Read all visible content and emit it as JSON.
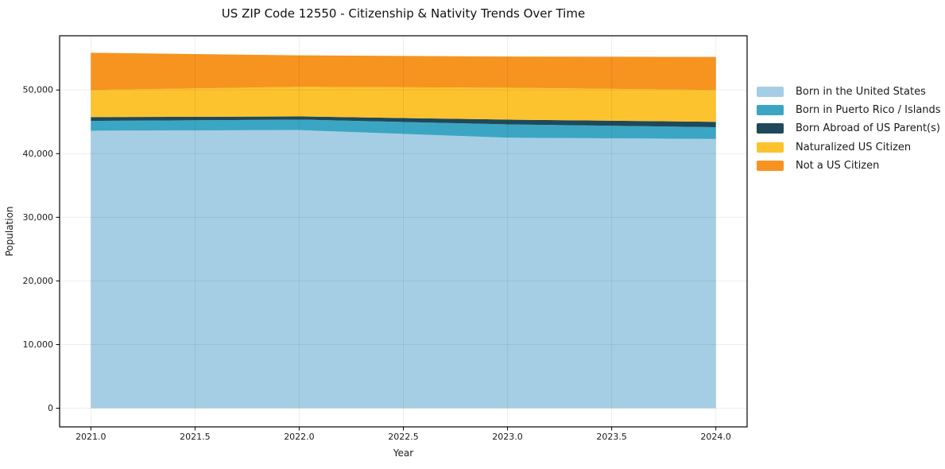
{
  "figure": {
    "title": "US ZIP Code 12550 - Citizenship & Nativity Trends Over Time"
  },
  "chart_data": {
    "type": "area",
    "stacked": true,
    "title": "US ZIP Code 12550 - Citizenship & Nativity Trends Over Time",
    "xlabel": "Year",
    "ylabel": "Population",
    "x": [
      2021,
      2022,
      2023,
      2024
    ],
    "series": [
      {
        "name": "Born in the United States",
        "color": "#a5cee4",
        "values": [
          43600,
          43700,
          42500,
          42300
        ]
      },
      {
        "name": "Born in Puerto Rico / Islands",
        "color": "#3ba6c3",
        "values": [
          1550,
          1650,
          2100,
          1850
        ]
      },
      {
        "name": "Born Abroad of US Parent(s)",
        "color": "#1f495a",
        "values": [
          600,
          500,
          750,
          850
        ]
      },
      {
        "name": "Naturalized US Citizen",
        "color": "#fcc32f",
        "values": [
          4250,
          4650,
          5000,
          5000
        ]
      },
      {
        "name": "Not a US Citizen",
        "color": "#f6941f",
        "values": [
          5850,
          4950,
          4900,
          5200
        ]
      }
    ],
    "totals": [
      55850,
      55450,
      55250,
      55200
    ],
    "xlim": [
      2020.85,
      2024.15
    ],
    "ylim": [
      -2930,
      58520
    ],
    "xticks": {
      "values": [
        2021.0,
        2021.5,
        2022.0,
        2022.5,
        2023.0,
        2023.5,
        2024.0
      ],
      "labels": [
        "2021.0",
        "2021.5",
        "2022.0",
        "2022.5",
        "2023.0",
        "2023.5",
        "2024.0"
      ]
    },
    "yticks": {
      "values": [
        0,
        10000,
        20000,
        30000,
        40000,
        50000
      ],
      "labels": [
        "0",
        "10,000",
        "20,000",
        "30,000",
        "40,000",
        "50,000"
      ]
    },
    "grid": true,
    "legend": {
      "position": "right-of-plot"
    }
  },
  "style_colors": {
    "spine": "#000000",
    "gridline": "rgba(0,0,0,0.07)",
    "tick_text": "#1a1a1a"
  }
}
